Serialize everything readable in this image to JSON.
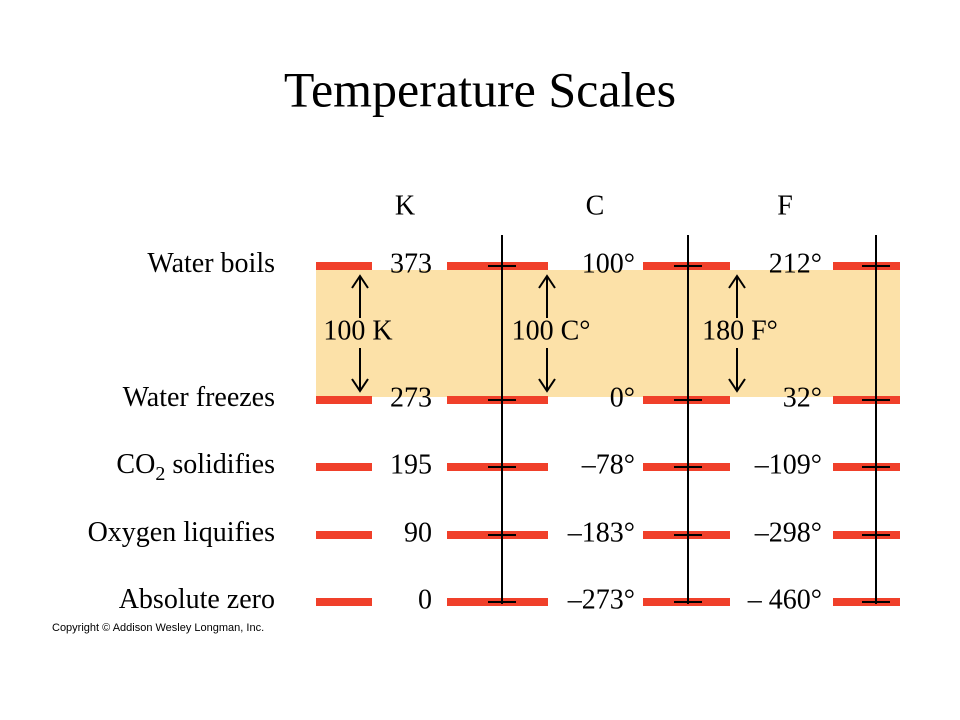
{
  "title": "Temperature Scales",
  "columns": [
    "K",
    "C",
    "F"
  ],
  "rows": [
    {
      "label": [
        "Water boils"
      ],
      "values": [
        "373",
        "100°",
        "212°"
      ]
    },
    {
      "label": [
        "Water freezes"
      ],
      "values": [
        "273",
        "0°",
        "32°"
      ]
    },
    {
      "label": [
        "CO",
        "2",
        " solidifies"
      ],
      "values": [
        "195",
        "–78°",
        "–109°"
      ]
    },
    {
      "label": [
        "Oxygen liquifies"
      ],
      "values": [
        "90",
        "–183°",
        "–298°"
      ]
    },
    {
      "label": [
        "Absolute zero"
      ],
      "values": [
        "0",
        "–273°",
        "– 460°"
      ]
    }
  ],
  "spans": [
    "100 K",
    "100 C°",
    "180 F°"
  ],
  "copyright": "Copyright © Addison Wesley Longman, Inc."
}
